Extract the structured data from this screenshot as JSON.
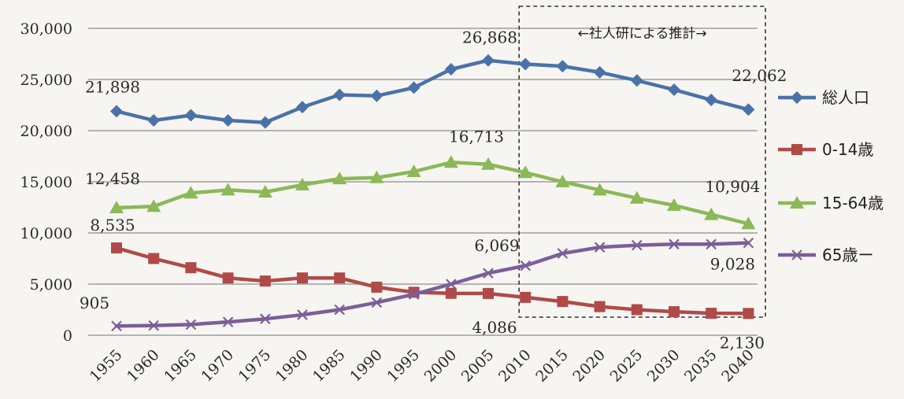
{
  "chart_data": {
    "type": "line",
    "title": "",
    "xlabel": "",
    "ylabel": "",
    "x": [
      1955,
      1960,
      1965,
      1970,
      1975,
      1980,
      1985,
      1990,
      1995,
      2000,
      2005,
      2010,
      2015,
      2020,
      2025,
      2030,
      2035,
      2040
    ],
    "x_tick_labels": [
      "1955",
      "1960",
      "1965",
      "1970",
      "1975",
      "1980",
      "1985",
      "1990",
      "1995",
      "2000",
      "2005",
      "2010",
      "2015",
      "2020",
      "2025",
      "2030",
      "2035",
      "2040"
    ],
    "ylim": [
      0,
      30000
    ],
    "y_ticks": [
      0,
      5000,
      10000,
      15000,
      20000,
      25000,
      30000
    ],
    "y_tick_labels": [
      "0",
      "5,000",
      "10,000",
      "15,000",
      "20,000",
      "25,000",
      "30,000"
    ],
    "grid": "horizontal",
    "legend_position": "right",
    "series": [
      {
        "name": "総人口",
        "color": "#4a72a8",
        "marker": "diamond",
        "values": [
          21898,
          21000,
          21500,
          21000,
          20800,
          22300,
          23500,
          23400,
          24200,
          26000,
          26868,
          26500,
          26300,
          25700,
          24900,
          24000,
          23000,
          22062
        ]
      },
      {
        "name": "0-14歳",
        "color": "#b04a48",
        "marker": "square",
        "values": [
          8535,
          7500,
          6600,
          5600,
          5300,
          5600,
          5600,
          4700,
          4200,
          4100,
          4086,
          3700,
          3300,
          2800,
          2500,
          2300,
          2150,
          2130
        ]
      },
      {
        "name": "15-64歳",
        "color": "#8cb858",
        "marker": "triangle",
        "values": [
          12458,
          12600,
          13900,
          14200,
          14000,
          14700,
          15300,
          15400,
          16000,
          16900,
          16713,
          15900,
          15000,
          14200,
          13400,
          12700,
          11800,
          10904
        ]
      },
      {
        "name": "65歳ー",
        "color": "#7a5f98",
        "marker": "x",
        "values": [
          905,
          950,
          1050,
          1300,
          1600,
          2000,
          2500,
          3200,
          4000,
          5000,
          6069,
          6800,
          8000,
          8600,
          8800,
          8900,
          8900,
          9028
        ]
      }
    ],
    "data_labels": [
      {
        "series": 0,
        "index": 0,
        "text": "21,898"
      },
      {
        "series": 0,
        "index": 10,
        "text": "26,868"
      },
      {
        "series": 0,
        "index": 17,
        "text": "22,062"
      },
      {
        "series": 2,
        "index": 0,
        "text": "12,458"
      },
      {
        "series": 2,
        "index": 10,
        "text": "16,713"
      },
      {
        "series": 2,
        "index": 17,
        "text": "10,904"
      },
      {
        "series": 1,
        "index": 0,
        "text": "8,535"
      },
      {
        "series": 1,
        "index": 10,
        "text": "4,086"
      },
      {
        "series": 1,
        "index": 17,
        "text": "2,130"
      },
      {
        "series": 3,
        "index": 0,
        "text": "905"
      },
      {
        "series": 3,
        "index": 10,
        "text": "6,069"
      },
      {
        "series": 3,
        "index": 17,
        "text": "9,028"
      }
    ],
    "annotation": {
      "text": "←社人研による推計→",
      "from_x": 2010,
      "style": "dashed-box"
    }
  }
}
